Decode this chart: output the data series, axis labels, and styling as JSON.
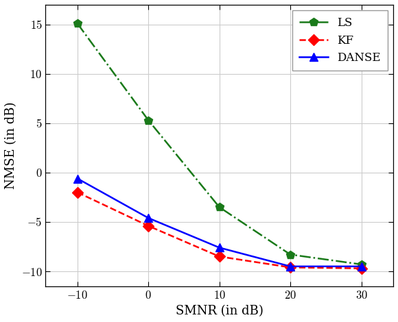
{
  "x": [
    -10,
    0,
    10,
    20,
    30
  ],
  "ls_y": [
    15.1,
    5.3,
    -3.5,
    -8.3,
    -9.3
  ],
  "kf_y": [
    -2.0,
    -5.4,
    -8.5,
    -9.6,
    -9.7
  ],
  "danse_y": [
    -0.6,
    -4.6,
    -7.6,
    -9.5,
    -9.5
  ],
  "xlabel": "SMNR (in dB)",
  "ylabel": "NMSE (in dB)",
  "ls_color": "#1a7a1a",
  "kf_color": "#ff0000",
  "danse_color": "#0000ff",
  "ls_label": "LS",
  "kf_label": "KF",
  "danse_label": "DANSE",
  "xlim": [
    -14.5,
    34.5
  ],
  "ylim": [
    -11.5,
    17.0
  ],
  "xticks": [
    -10,
    0,
    10,
    20,
    30
  ],
  "yticks": [
    -10,
    -5,
    0,
    5,
    10,
    15
  ],
  "grid_color": "#cccccc",
  "background_color": "#ffffff",
  "legend_loc": "upper right",
  "markersize": 9,
  "linewidth": 1.8
}
